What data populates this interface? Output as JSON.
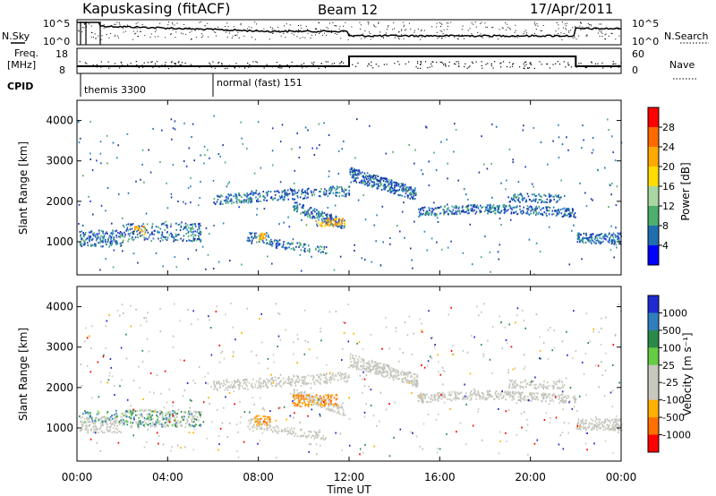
{
  "header": {
    "station": "Kapuskasing (fitACF)",
    "beam": "Beam 12",
    "date": "17/Apr/2011"
  },
  "noise_panel": {
    "left_label": "N.Sky",
    "right_label": "N.Search",
    "tick_top": "10^5",
    "tick_bottom": "10^0"
  },
  "freq_panel": {
    "left_label_1": "Freq.",
    "left_label_2": "[MHz]",
    "tick_top": "18",
    "tick_bottom": "8",
    "right_label": "Nave",
    "right_tick_top": "60",
    "right_tick_bottom": "0",
    "cpid_label": "CPID",
    "cpid_segments": [
      {
        "label": "themis 3300",
        "start_hour": 0
      },
      {
        "label": "normal (fast) 151",
        "start_hour": 6
      }
    ]
  },
  "chart_data": [
    {
      "type": "heatmap",
      "parameter": "Power",
      "ylabel": "Slant Range [km]",
      "ylim": [
        180,
        4500
      ],
      "yticks": [
        1000,
        2000,
        3000,
        4000
      ],
      "colorbar_label": "Power [dB]",
      "colorbar_ticks": [
        "28",
        "24",
        "20",
        "16",
        "12",
        "8",
        "4"
      ],
      "colorbar_colors": [
        "#ff0000",
        "#ff6a00",
        "#ffaa00",
        "#ffdd00",
        "#a8d8a0",
        "#4caf6e",
        "#1e6fb0",
        "#0000ff"
      ]
    },
    {
      "type": "heatmap",
      "parameter": "Velocity",
      "ylabel": "Slant Range [km]",
      "ylim": [
        180,
        4500
      ],
      "yticks": [
        1000,
        2000,
        3000,
        4000
      ],
      "colorbar_label": "Velocity [m s⁻¹]",
      "colorbar_ticks": [
        "1000",
        "500",
        "100",
        "25",
        "-25",
        "-100",
        "-500",
        "-1000"
      ],
      "colorbar_colors": [
        "#1e2bd0",
        "#2f7fbf",
        "#2a8a4a",
        "#66cc44",
        "#c8c8c0",
        "#c8c8c0",
        "#ffb000",
        "#ff7000",
        "#ff0000"
      ]
    }
  ],
  "time_axis": {
    "label": "Time UT",
    "ticks": [
      "00:00",
      "04:00",
      "08:00",
      "12:00",
      "16:00",
      "20:00",
      "00:00"
    ]
  }
}
